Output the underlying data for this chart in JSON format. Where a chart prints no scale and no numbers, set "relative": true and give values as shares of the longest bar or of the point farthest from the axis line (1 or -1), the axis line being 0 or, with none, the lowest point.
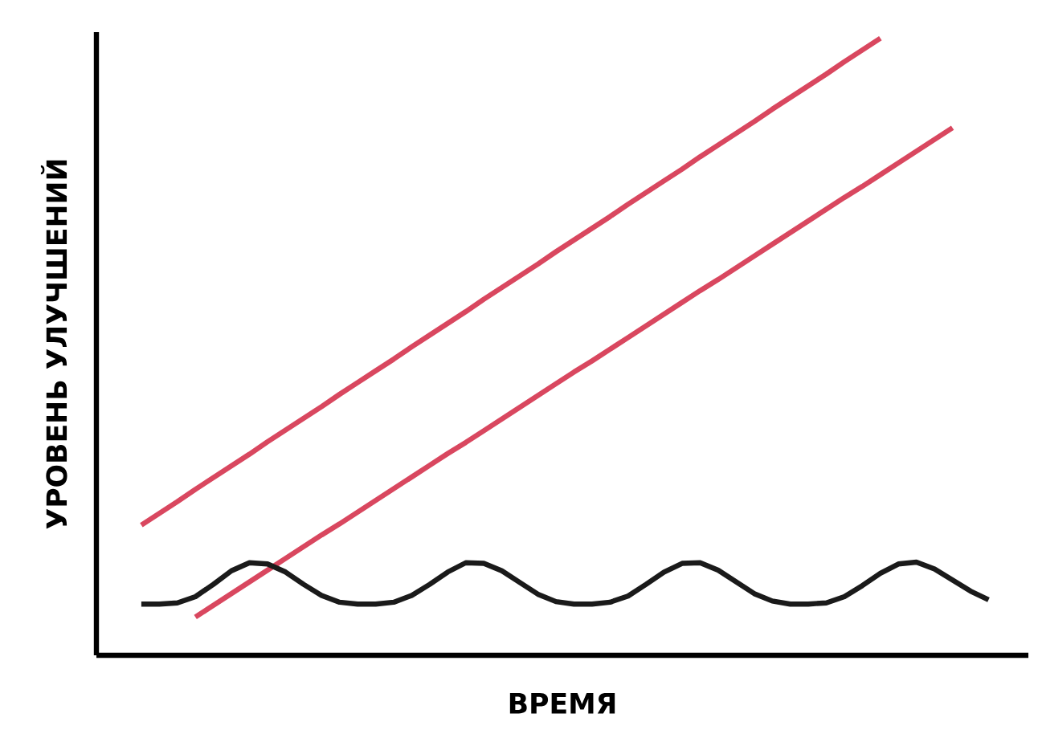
{
  "chart_data": {
    "type": "line",
    "relative": true,
    "xlabel": "ВРЕМЯ",
    "ylabel": "УРОВЕНЬ УЛУЧШЕНИЙ",
    "tick_labels": false,
    "categories": [
      null,
      null,
      null,
      null,
      null,
      null,
      null,
      null,
      null,
      null,
      null,
      null,
      null,
      null,
      null,
      null,
      null,
      null,
      null,
      null,
      null,
      null,
      null,
      null,
      null,
      null,
      null,
      null,
      null,
      null,
      null,
      null,
      null,
      null,
      null,
      null,
      null,
      null,
      null,
      null,
      null,
      null,
      null,
      null,
      null,
      null,
      null,
      null
    ],
    "series": [
      {
        "color": "#d9475f",
        "values": [
          0.211,
          0.23,
          0.249,
          0.269,
          0.288,
          0.307,
          0.326,
          0.346,
          0.365,
          0.384,
          0.403,
          0.423,
          0.442,
          0.461,
          0.48,
          0.5,
          0.519,
          0.538,
          0.557,
          0.577,
          0.596,
          0.615,
          0.634,
          0.654,
          0.673,
          0.692,
          0.711,
          0.731,
          0.75,
          0.769,
          0.788,
          0.808,
          0.827,
          0.846,
          0.865,
          0.885,
          0.904,
          0.923,
          0.942,
          0.962,
          0.981,
          1.0,
          null,
          null,
          null,
          null,
          null,
          null
        ]
      },
      {
        "color": "#d9475f",
        "values": [
          null,
          null,
          null,
          0.062,
          0.081,
          0.1,
          0.119,
          0.138,
          0.157,
          0.176,
          0.195,
          0.213,
          0.232,
          0.251,
          0.27,
          0.289,
          0.308,
          0.327,
          0.345,
          0.364,
          0.383,
          0.402,
          0.421,
          0.44,
          0.459,
          0.477,
          0.496,
          0.515,
          0.534,
          0.553,
          0.572,
          0.591,
          0.609,
          0.628,
          0.647,
          0.666,
          0.685,
          0.704,
          0.723,
          0.742,
          0.76,
          0.779,
          0.798,
          0.817,
          0.836,
          0.855,
          null,
          null
        ]
      },
      {
        "color": "#1a1a1a",
        "values": [
          0.083,
          0.083,
          0.085,
          0.095,
          0.115,
          0.137,
          0.15,
          0.148,
          0.135,
          0.115,
          0.097,
          0.086,
          0.083,
          0.083,
          0.086,
          0.097,
          0.115,
          0.135,
          0.15,
          0.149,
          0.137,
          0.118,
          0.099,
          0.087,
          0.083,
          0.083,
          0.086,
          0.096,
          0.115,
          0.135,
          0.149,
          0.15,
          0.138,
          0.119,
          0.1,
          0.088,
          0.083,
          0.083,
          0.085,
          0.095,
          0.113,
          0.133,
          0.148,
          0.151,
          0.14,
          0.122,
          0.104,
          0.09
        ]
      }
    ]
  }
}
